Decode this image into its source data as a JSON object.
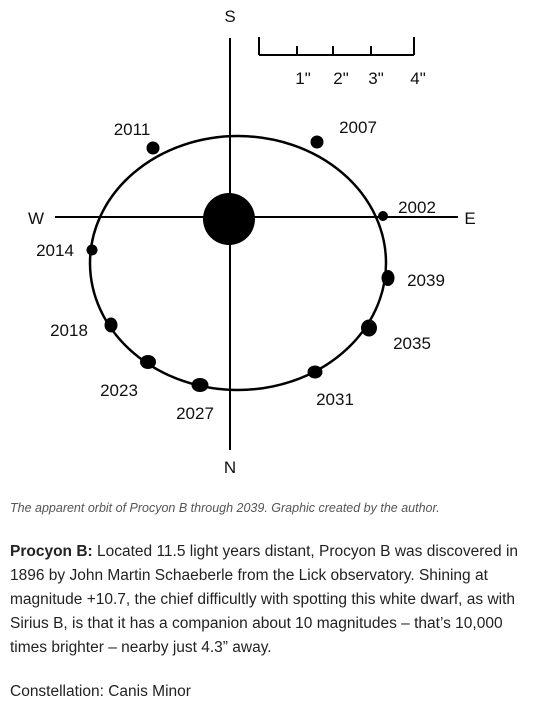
{
  "diagram": {
    "directions": {
      "south": "S",
      "north": "N",
      "west": "W",
      "east": "E"
    },
    "scale_labels": [
      "1\"",
      "2\"",
      "3\"",
      "4\""
    ],
    "orbit_points": [
      {
        "year": "2002"
      },
      {
        "year": "2007"
      },
      {
        "year": "2011"
      },
      {
        "year": "2014"
      },
      {
        "year": "2018"
      },
      {
        "year": "2023"
      },
      {
        "year": "2027"
      },
      {
        "year": "2031"
      },
      {
        "year": "2035"
      },
      {
        "year": "2039"
      }
    ]
  },
  "caption": "The apparent orbit of Procyon B through 2039. Graphic created by the author.",
  "paragraph": {
    "lead": "Procyon B:",
    "text": " Located 11.5 light years distant, Procyon B was discovered in 1896 by John Martin Schaeberle from the Lick observatory. Shining at magnitude +10.7, the chief difficultly with spotting this white dwarf, as with Sirius B, is that it has a companion about 10 magnitudes – that’s 10,000 times brighter – nearby just 4.3” away."
  },
  "constellation": "Constellation: Canis Minor"
}
